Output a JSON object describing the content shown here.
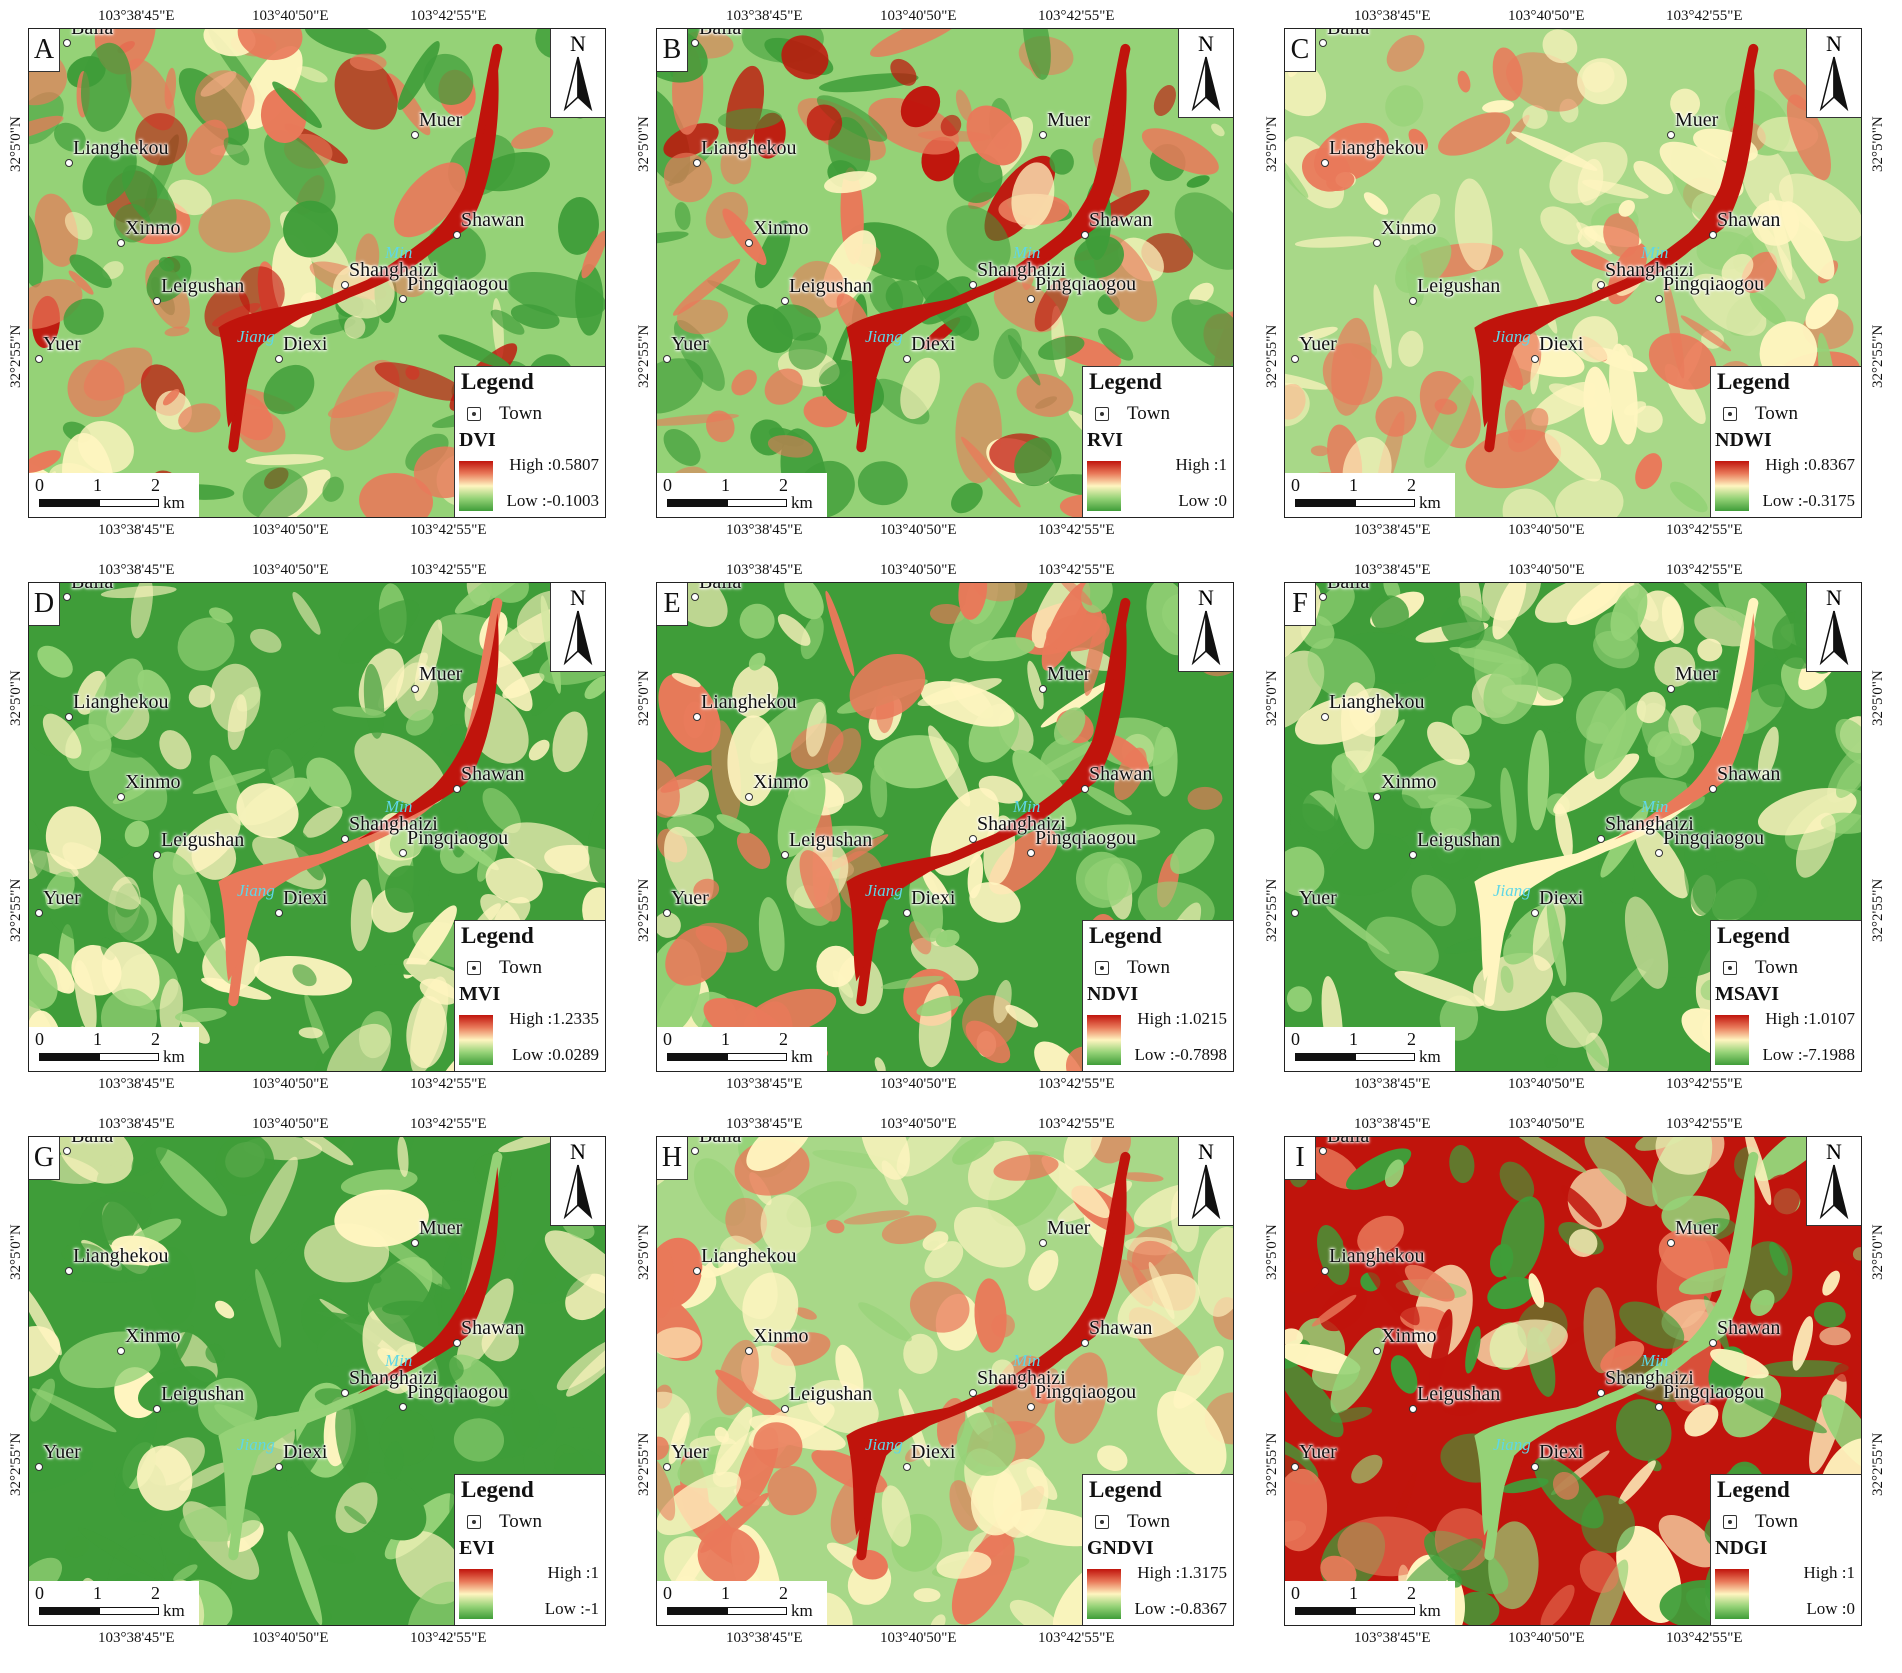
{
  "coords": {
    "top": [
      "103°38'45\"E",
      "103°40'50\"E",
      "103°42'55\"E"
    ],
    "bottom": [
      "103°38'45\"E",
      "103°40'50\"E",
      "103°42'55\"E"
    ],
    "left": [
      "32°5'0\"N",
      "32°2'55\"N"
    ],
    "right": [
      "32°5'0\"N",
      "32°2'55\"N"
    ]
  },
  "towns": [
    "Baila",
    "Lianghekou",
    "Xinmo",
    "Leigushan",
    "Yuer",
    "Diexi",
    "Shanghaizi",
    "Pingqiaogou",
    "Shawan",
    "Muer"
  ],
  "rivers": [
    "Min",
    "Jiang"
  ],
  "legend": {
    "title": "Legend",
    "town_label": "Town"
  },
  "scale": {
    "ticks": [
      "0",
      "1",
      "2"
    ],
    "unit": "km"
  },
  "north": "N",
  "colors": {
    "high": "#c0140c",
    "mid": "#fff5c0",
    "low": "#3f9d39"
  },
  "panels": [
    {
      "letter": "A",
      "index": "DVI",
      "high": "High :0.5807",
      "low": "Low :-0.1003"
    },
    {
      "letter": "B",
      "index": "RVI",
      "high": "High :1",
      "low": "Low :0"
    },
    {
      "letter": "C",
      "index": "NDWI",
      "high": "High :0.8367",
      "low": "Low :-0.3175"
    },
    {
      "letter": "D",
      "index": "MVI",
      "high": "High :1.2335",
      "low": "Low :0.0289"
    },
    {
      "letter": "E",
      "index": "NDVI",
      "high": "High :1.0215",
      "low": "Low :-0.7898"
    },
    {
      "letter": "F",
      "index": "MSAVI",
      "high": "High :1.0107",
      "low": "Low :-7.1988"
    },
    {
      "letter": "G",
      "index": "EVI",
      "high": "High :1",
      "low": "Low :-1"
    },
    {
      "letter": "H",
      "index": "GNDVI",
      "high": "High :1.3175",
      "low": "Low :-0.8367"
    },
    {
      "letter": "I",
      "index": "NDGI",
      "high": "High :1",
      "low": "Low :0"
    }
  ]
}
